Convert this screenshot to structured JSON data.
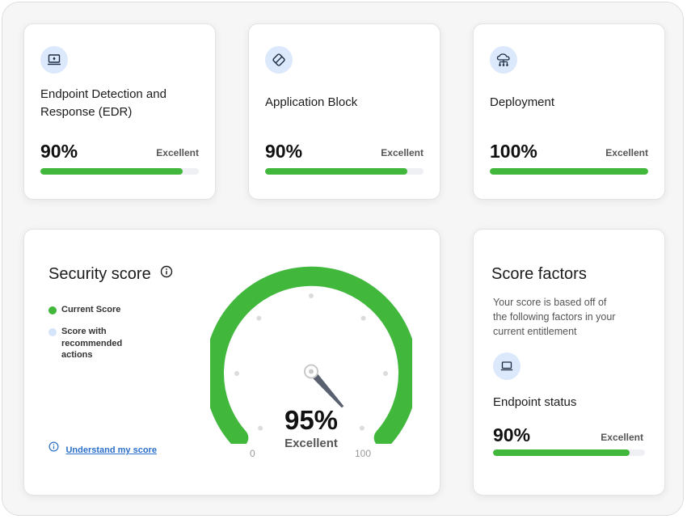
{
  "cards": [
    {
      "title_line1": "Endpoint Detection and",
      "title_line2": "Response (EDR)",
      "icon": "laptop-icon",
      "percent": "90%",
      "value": 0.9,
      "rating": "Excellent"
    },
    {
      "title_line1": "Application Block",
      "title_line2": "",
      "icon": "blocked-app-icon",
      "percent": "90%",
      "value": 0.9,
      "rating": "Excellent"
    },
    {
      "title_line1": "Deployment",
      "title_line2": "",
      "icon": "cloud-network-icon",
      "percent": "100%",
      "value": 1.0,
      "rating": "Excellent"
    }
  ],
  "security_score": {
    "title": "Security score",
    "legend": [
      {
        "label": "Current Score",
        "color": "#41b83b"
      },
      {
        "label_lines": [
          "Score with",
          "recommended",
          "actions"
        ],
        "color": "#d6e4f9"
      }
    ],
    "link": "Understand my score",
    "score_text": "95%",
    "score_value": 95,
    "rating": "Excellent",
    "min_label": "0",
    "max_label": "100"
  },
  "score_factors": {
    "title": "Score factors",
    "desc_lines": [
      "Your score is based off of",
      "the following factors in your",
      "current entitlement"
    ],
    "item_title": "Endpoint status",
    "icon": "laptop-icon",
    "percent": "90%",
    "value": 0.9,
    "rating": "Excellent"
  },
  "colors": {
    "accent_green": "#41b83b",
    "icon_bg": "#dce8fb",
    "link_blue": "#2a6fc8"
  }
}
